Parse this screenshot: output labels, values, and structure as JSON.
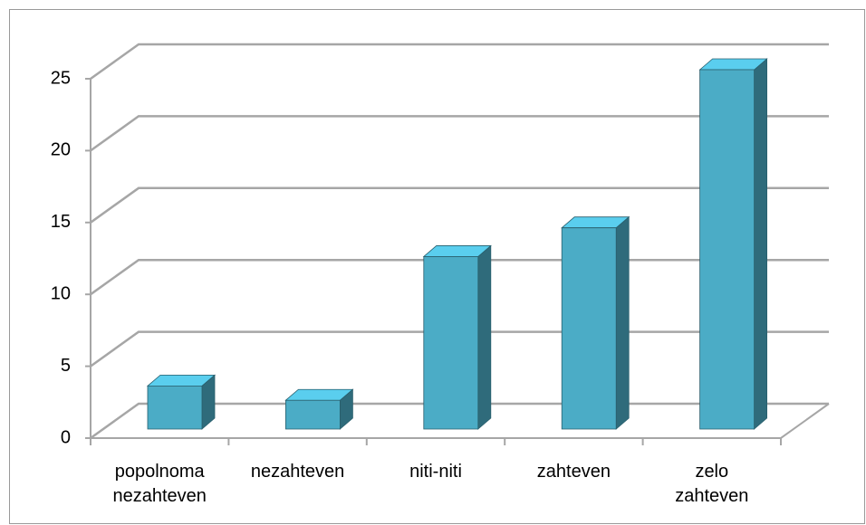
{
  "chart_data": {
    "type": "bar3d",
    "categories": [
      "popolnoma nezahteven",
      "nezahteven",
      "niti-niti",
      "zahteven",
      "zelo zahteven"
    ],
    "values": [
      3,
      2,
      12,
      14,
      25
    ],
    "color": "#4bacc6",
    "ylim": [
      0,
      25
    ],
    "yticks": [
      0,
      5,
      10,
      15,
      20,
      25
    ],
    "grid": true
  }
}
